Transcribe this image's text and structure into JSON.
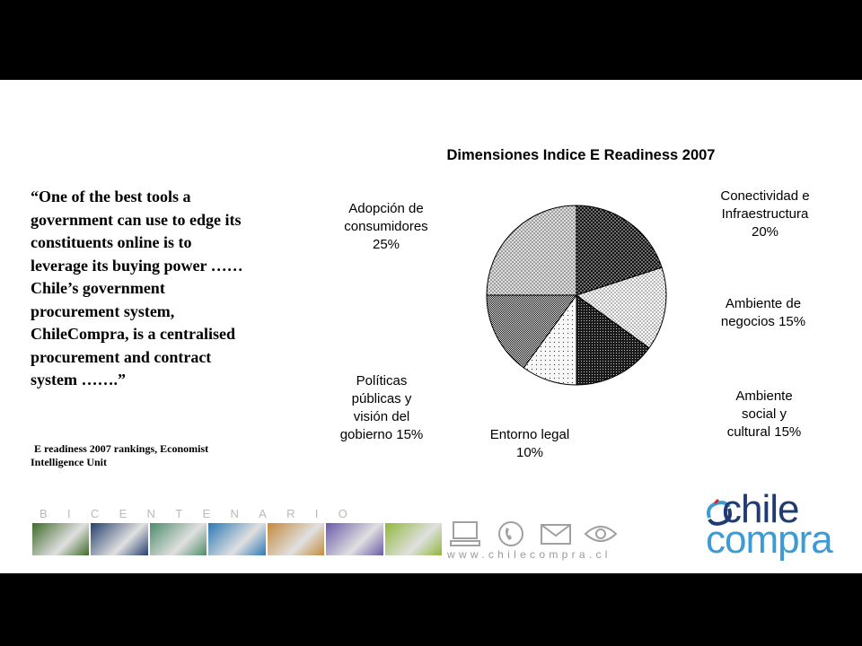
{
  "quote": {
    "lines": [
      "“One of the best tools a",
      "government can use to edge its",
      "constituents online is to",
      "leverage its buying power ……",
      "Chile’s government",
      "procurement system,",
      "ChileCompra, is a centralised",
      "procurement and contract",
      "system …….”"
    ]
  },
  "source": {
    "line1": "E readiness 2007 rankings, Economist",
    "line2": "Intelligence Unit"
  },
  "chart_data": {
    "type": "pie",
    "title": "Dimensiones Indice E Readiness 2007",
    "slices": [
      {
        "name": "Conectividad e Infraestructura",
        "value": 20,
        "label_lines": [
          "Conectividad e",
          "Infraestructura",
          "20%"
        ],
        "fill": "#111111",
        "pattern": "dots-light"
      },
      {
        "name": "Ambiente de negocios",
        "value": 15,
        "label_lines": [
          "Ambiente de",
          "negocios 15%"
        ],
        "fill": "#ffffff",
        "pattern": "dots-dark"
      },
      {
        "name": "Ambiente social y cultural",
        "value": 15,
        "label_lines": [
          "Ambiente",
          "social y",
          "cultural 15%"
        ],
        "fill": "#1a1a1a",
        "pattern": "dots-light-fine"
      },
      {
        "name": "Entorno legal",
        "value": 10,
        "label_lines": [
          "Entorno legal",
          "10%"
        ],
        "fill": "#f4f4f4",
        "pattern": "dots-sparse"
      },
      {
        "name": "Políticas públicas y visión del gobierno",
        "value": 15,
        "label_lines": [
          "Políticas",
          "públicas y",
          "visión del",
          "gobierno 15%"
        ],
        "fill": "#8a8a8a",
        "pattern": "checker"
      },
      {
        "name": "Adopción de consumidores",
        "value": 25,
        "label_lines": [
          "Adopción de",
          "consumidores",
          "25%"
        ],
        "fill": "#d8d8d8",
        "pattern": "dots-medium"
      }
    ]
  },
  "footer": {
    "bicentenario": "BICENTENARIO",
    "url": "www.chilecompra.cl",
    "logo_word1": "chile",
    "logo_word2": "compra",
    "icons": [
      "computer-icon",
      "phone-icon",
      "envelope-icon",
      "eye-icon"
    ],
    "photo_colors": [
      "#3f6b2a",
      "#26406e",
      "#4d8c6a",
      "#2c79b5",
      "#c48a3a",
      "#6a5aa8",
      "#8fb83a"
    ]
  },
  "colors": {
    "brand_dark": "#1f3b73",
    "brand_light": "#3a9bd5"
  }
}
